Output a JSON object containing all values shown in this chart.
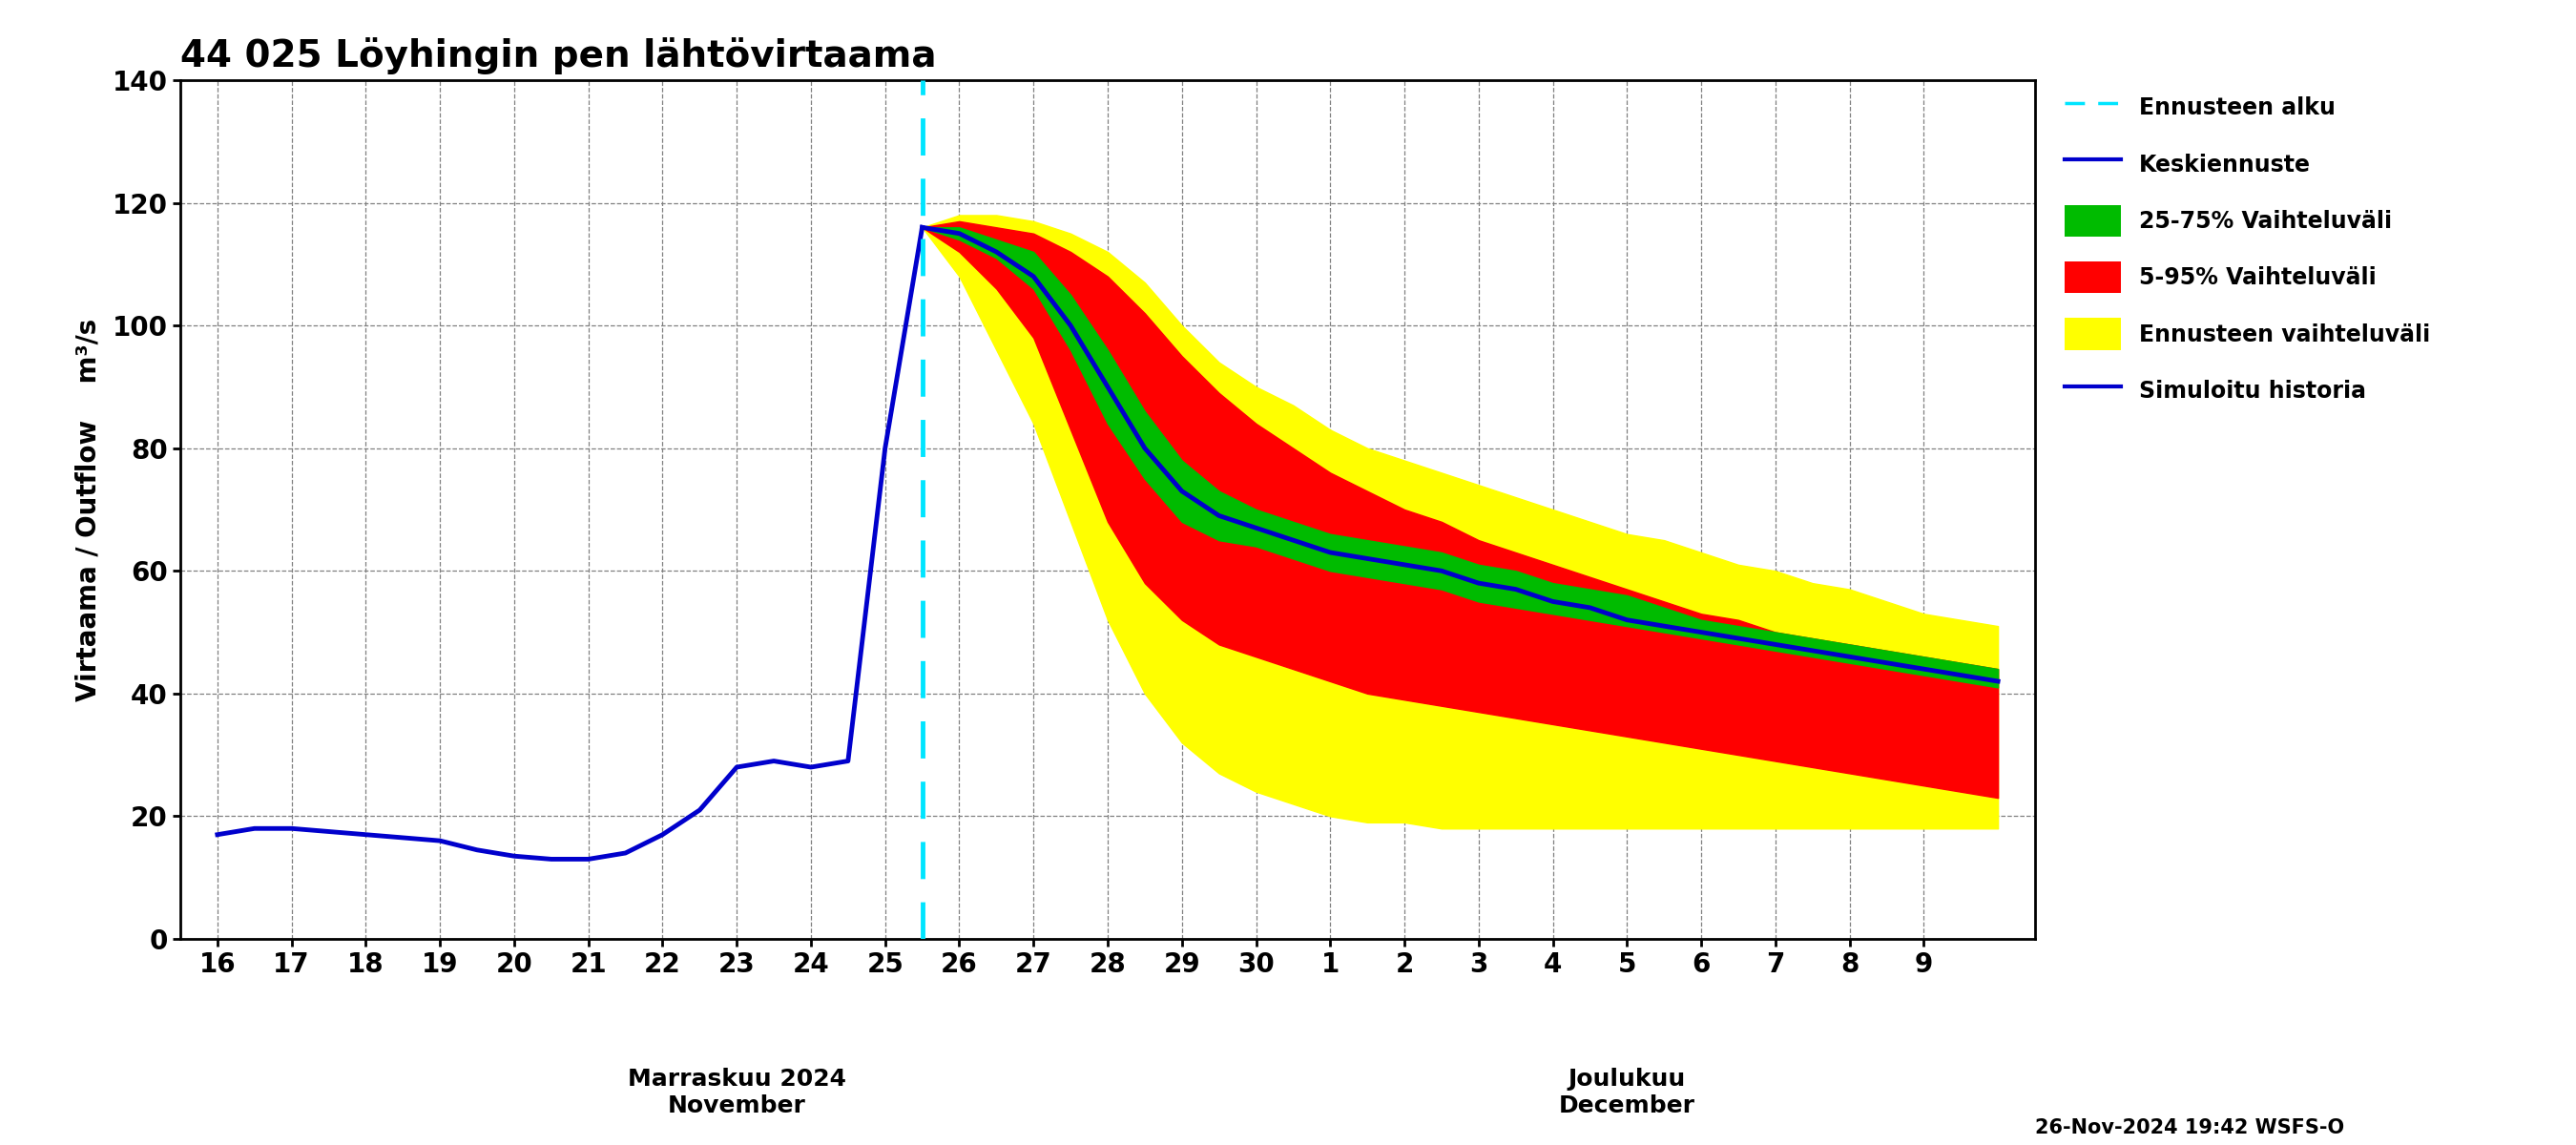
{
  "title": "44 025 Löyhingin pen lähtövirtaama",
  "ylabel1": "Virtaama / Outflow",
  "ylabel2": "m³/s",
  "ylim": [
    0,
    140
  ],
  "yticks": [
    0,
    20,
    40,
    60,
    80,
    100,
    120,
    140
  ],
  "forecast_start_day": 25.5,
  "date_label_nov": "Marraskuu 2024\nNovember",
  "date_label_dec": "Joulukuu\nDecember",
  "footer": "26-Nov-2024 19:42 WSFS-O",
  "legend_labels": [
    "Ennusteen alku",
    "Keskiennuste",
    "25-75% Vaihteluväli",
    "5-95% Vaihteluväli",
    "Ennusteen vaihteluväli",
    "Simuloitu historia"
  ],
  "history_x": [
    16,
    16.5,
    17,
    17.5,
    18,
    18.5,
    19,
    19.5,
    20,
    20.5,
    21,
    21.5,
    22,
    22.5,
    23,
    23.5,
    24,
    24.5,
    25,
    25.5
  ],
  "history_y": [
    17,
    18,
    18,
    17.5,
    17,
    16.5,
    16,
    14.5,
    13.5,
    13,
    13,
    14,
    17,
    21,
    28,
    29,
    28,
    29,
    80,
    116
  ],
  "forecast_x": [
    25.5,
    26,
    26.5,
    27,
    27.5,
    28,
    28.5,
    29,
    29.5,
    30,
    30.5,
    31,
    31.5,
    32,
    32.5,
    33,
    33.5,
    34,
    34.5,
    35,
    35.5,
    36,
    36.5,
    37,
    37.5,
    38,
    38.5,
    39,
    39.5,
    40
  ],
  "median_y": [
    116,
    115,
    112,
    108,
    100,
    90,
    80,
    73,
    69,
    67,
    65,
    63,
    62,
    61,
    60,
    58,
    57,
    55,
    54,
    52,
    51,
    50,
    49,
    48,
    47,
    46,
    45,
    44,
    43,
    42
  ],
  "p25_y": [
    116,
    114,
    111,
    106,
    96,
    84,
    75,
    68,
    65,
    64,
    62,
    60,
    59,
    58,
    57,
    55,
    54,
    53,
    52,
    51,
    50,
    49,
    48,
    47,
    46,
    45,
    44,
    43,
    42,
    41
  ],
  "p75_y": [
    116,
    116,
    114,
    112,
    105,
    96,
    86,
    78,
    73,
    70,
    68,
    66,
    65,
    64,
    63,
    61,
    60,
    58,
    57,
    56,
    54,
    52,
    51,
    50,
    49,
    48,
    47,
    46,
    45,
    44
  ],
  "p5_y": [
    116,
    112,
    106,
    98,
    83,
    68,
    58,
    52,
    48,
    46,
    44,
    42,
    40,
    39,
    38,
    37,
    36,
    35,
    34,
    33,
    32,
    31,
    30,
    29,
    28,
    27,
    26,
    25,
    24,
    23
  ],
  "p95_y": [
    116,
    117,
    116,
    115,
    112,
    108,
    102,
    95,
    89,
    84,
    80,
    76,
    73,
    70,
    68,
    65,
    63,
    61,
    59,
    57,
    55,
    53,
    52,
    50,
    49,
    48,
    47,
    46,
    45,
    44
  ],
  "env_low_y": [
    116,
    108,
    96,
    84,
    68,
    52,
    40,
    32,
    27,
    24,
    22,
    20,
    19,
    19,
    18,
    18,
    18,
    18,
    18,
    18,
    18,
    18,
    18,
    18,
    18,
    18,
    18,
    18,
    18,
    18
  ],
  "env_high_y": [
    116,
    118,
    118,
    117,
    115,
    112,
    107,
    100,
    94,
    90,
    87,
    83,
    80,
    78,
    76,
    74,
    72,
    70,
    68,
    66,
    65,
    63,
    61,
    60,
    58,
    57,
    55,
    53,
    52,
    51
  ],
  "nov_ticks": [
    16,
    17,
    18,
    19,
    20,
    21,
    22,
    23,
    24,
    25,
    26,
    27,
    28,
    29,
    30
  ],
  "dec_ticks_mapped": [
    31,
    32,
    33,
    34,
    35,
    36,
    37,
    38,
    39
  ],
  "nov_labels": [
    "16",
    "17",
    "18",
    "19",
    "20",
    "21",
    "22",
    "23",
    "24",
    "25",
    "26",
    "27",
    "28",
    "29",
    "30"
  ],
  "dec_labels": [
    "1",
    "2",
    "3",
    "4",
    "5",
    "6",
    "7",
    "8",
    "9"
  ],
  "xlim": [
    15.5,
    40.5
  ],
  "background_color": "#ffffff",
  "grid_color": "#808080",
  "history_color": "#0000cc",
  "median_color": "#0000cc",
  "yellow_color": "#ffff00",
  "red_color": "#ff0000",
  "green_color": "#00bb00",
  "cyan_color": "#00e5ff"
}
